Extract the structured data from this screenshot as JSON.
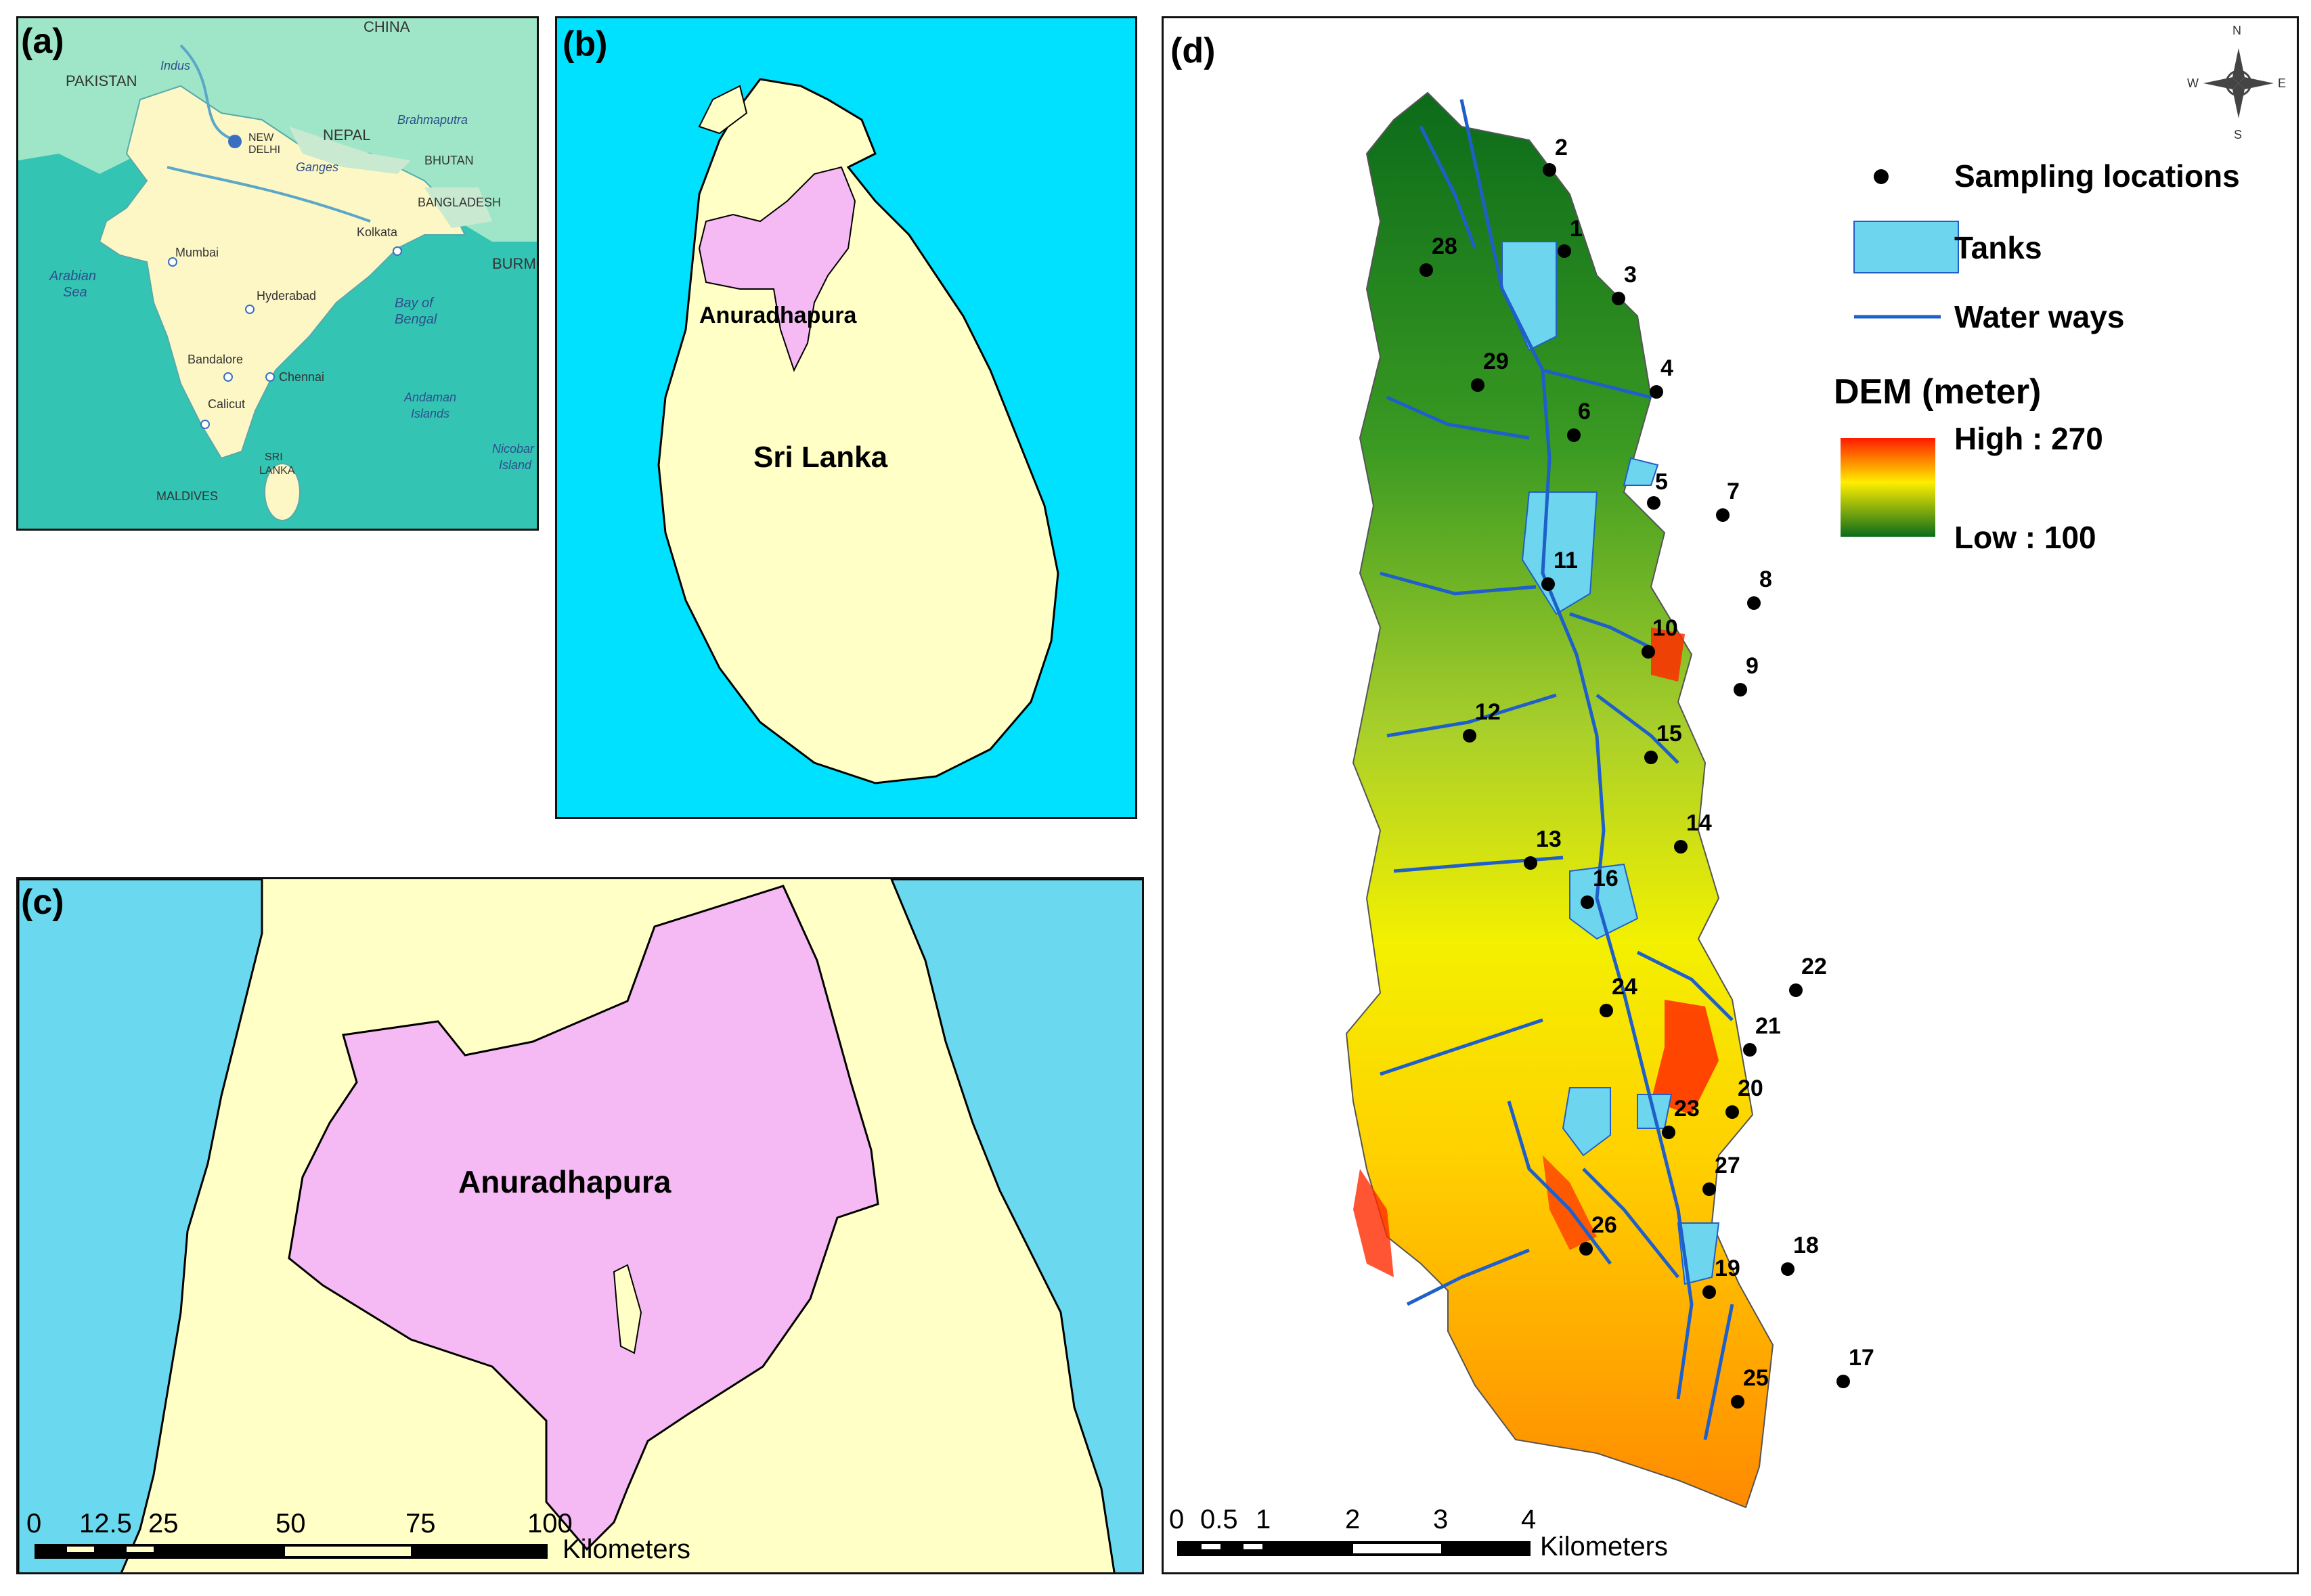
{
  "panels": {
    "a": {
      "label": "(a)",
      "places": {
        "china": "CHINA",
        "pakistan": "PAKISTAN",
        "indus": "Indus",
        "brahmaputra": "Brahmaputra",
        "nepal": "NEPAL",
        "new_delhi": "NEW DELHI",
        "ganges": "Ganges",
        "bhutan": "BHUTAN",
        "bangladesh": "BANGLADESH",
        "kolkata": "Kolkata",
        "burma": "BURM",
        "mumbai": "Mumbai",
        "arabian": "Arabian",
        "sea": "Sea",
        "hyderabad": "Hyderabad",
        "bay": "Bay of",
        "bengal": "Bengal",
        "bandalore": "Bandalore",
        "chennai": "Chennai",
        "calicut": "Calicut",
        "andaman": "Andaman",
        "islands": "Islands",
        "sri": "SRI",
        "lanka": "LANKA",
        "maldives": "MALDIVES",
        "nicobar": "Nicobar",
        "island": "Island"
      }
    },
    "b": {
      "label": "(b)",
      "district": "Anuradhapura",
      "country": "Sri Lanka"
    },
    "c": {
      "label": "(c)",
      "district": "Anuradhapura",
      "scale_ticks": [
        "0",
        "12.5",
        "25",
        "50",
        "75",
        "100"
      ],
      "scale_unit": "Kilometers"
    },
    "d": {
      "label": "(d)",
      "compass": {
        "n": "N",
        "s": "S",
        "e": "E",
        "w": "W"
      },
      "legend": {
        "sampling": "Sampling locations",
        "tanks": "Tanks",
        "waterways": "Water ways",
        "dem_title": "DEM (meter)",
        "high": "High : 270",
        "low": "Low : 100"
      },
      "colors": {
        "tank": "#6dd5ee",
        "waterway": "#1f5fc9",
        "high": "#ff2a00",
        "mid": "#ffee00",
        "low": "#0b6b1a"
      },
      "dem_range_m": [
        100,
        270
      ],
      "sampling_points": [
        "1",
        "2",
        "3",
        "4",
        "5",
        "6",
        "7",
        "8",
        "9",
        "10",
        "11",
        "12",
        "13",
        "14",
        "15",
        "16",
        "17",
        "18",
        "19",
        "20",
        "21",
        "22",
        "23",
        "24",
        "25",
        "26",
        "27",
        "28",
        "29"
      ],
      "scale_ticks": [
        "0",
        "0.5",
        "1",
        "2",
        "3",
        "4"
      ],
      "scale_unit": "Kilometers"
    }
  }
}
